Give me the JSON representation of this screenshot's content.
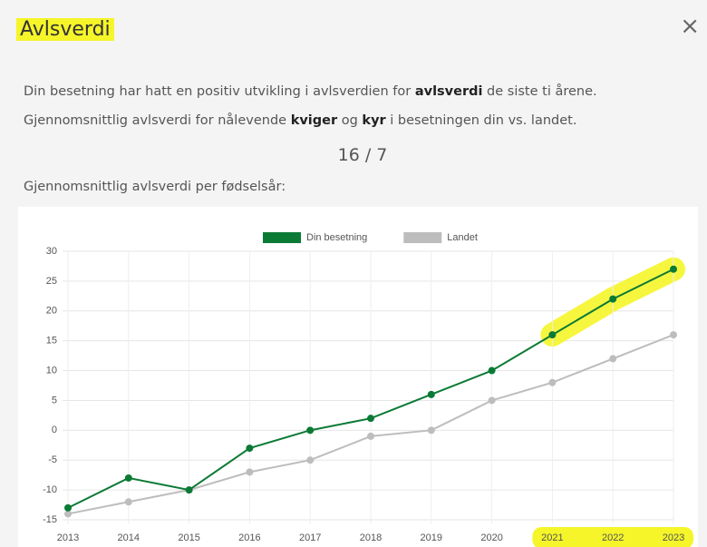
{
  "header": {
    "title": "Avlsverdi"
  },
  "paragraphs": [
    {
      "parts": [
        "Din besetning har hatt en positiv utvikling i avlsverdien for ",
        "avlsverdi",
        " de siste ti årene."
      ]
    },
    {
      "parts": [
        "Gjennomsnittlig avlsverdi for nålevende ",
        "kviger",
        " og ",
        "kyr",
        " i besetningen din vs. landet."
      ]
    }
  ],
  "summary": "16 / 7",
  "chart_caption": "Gjennomsnittlig avlsverdi per fødselsår:",
  "chart_data": {
    "type": "line",
    "categories": [
      "2013",
      "2014",
      "2015",
      "2016",
      "2017",
      "2018",
      "2019",
      "2020",
      "2021",
      "2022",
      "2023"
    ],
    "series": [
      {
        "name": "Din besetning",
        "color": "#0b7a35",
        "values": [
          -13,
          -8,
          -10,
          -3,
          0,
          2,
          6,
          10,
          16,
          22,
          27
        ]
      },
      {
        "name": "Landet",
        "color": "#bdbdbd",
        "values": [
          -14,
          -12,
          -10,
          -7,
          -5,
          -1,
          0,
          5,
          8,
          12,
          16
        ]
      }
    ],
    "ylim": [
      -15,
      30
    ],
    "yticks": [
      -15,
      -10,
      -5,
      0,
      5,
      10,
      15,
      20,
      25,
      30
    ],
    "grid": true,
    "legend": "top"
  }
}
